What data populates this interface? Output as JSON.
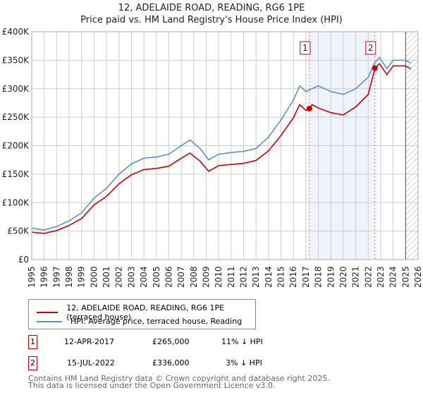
{
  "chart_data": {
    "type": "line",
    "title": "12, ADELAIDE ROAD, READING, RG6 1PE",
    "subtitle": "Price paid vs. HM Land Registry's House Price Index (HPI)",
    "xlim": [
      1995,
      2026
    ],
    "ylim": [
      0,
      400000
    ],
    "x_ticks": [
      "1995",
      "1996",
      "1997",
      "1998",
      "1999",
      "2000",
      "2001",
      "2002",
      "2003",
      "2004",
      "2005",
      "2006",
      "2007",
      "2008",
      "2009",
      "2010",
      "2011",
      "2012",
      "2013",
      "2014",
      "2015",
      "2016",
      "2017",
      "2018",
      "2019",
      "2020",
      "2021",
      "2022",
      "2023",
      "2024",
      "2025",
      "2026"
    ],
    "y_ticks": [
      {
        "v": 0,
        "l": "£0"
      },
      {
        "v": 50000,
        "l": "£50K"
      },
      {
        "v": 100000,
        "l": "£100K"
      },
      {
        "v": 150000,
        "l": "£150K"
      },
      {
        "v": 200000,
        "l": "£200K"
      },
      {
        "v": 250000,
        "l": "£250K"
      },
      {
        "v": 300000,
        "l": "£300K"
      },
      {
        "v": 350000,
        "l": "£350K"
      },
      {
        "v": 400000,
        "l": "£400K"
      }
    ],
    "grid": true,
    "series": [
      {
        "name": "HPI: Average price, terraced house, Reading",
        "color": "#5b8fd0",
        "x": [
          1995,
          1996,
          1997,
          1998,
          1999,
          2000,
          2001,
          2002,
          2003,
          2004,
          2005,
          2006,
          2007,
          2007.7,
          2008.5,
          2009.2,
          2010,
          2011,
          2012,
          2013,
          2014,
          2015,
          2016,
          2016.5,
          2017,
          2017.5,
          2018,
          2019,
          2020,
          2021,
          2022,
          2022.5,
          2022.9,
          2023.5,
          2024,
          2025,
          2025.4
        ],
        "y": [
          55000,
          52000,
          58000,
          68000,
          82000,
          108000,
          125000,
          150000,
          168000,
          178000,
          180000,
          185000,
          200000,
          210000,
          195000,
          175000,
          185000,
          188000,
          190000,
          195000,
          215000,
          245000,
          280000,
          305000,
          295000,
          300000,
          305000,
          295000,
          290000,
          300000,
          320000,
          345000,
          355000,
          335000,
          350000,
          350000,
          345000
        ]
      },
      {
        "name": "12, ADELAIDE ROAD, READING, RG6 1PE (terraced house)",
        "color": "#cc0000",
        "x": [
          1995,
          1996,
          1997,
          1998,
          1999,
          2000,
          2001,
          2002,
          2003,
          2004,
          2005,
          2006,
          2007,
          2007.7,
          2008.5,
          2009.2,
          2010,
          2011,
          2012,
          2013,
          2014,
          2015,
          2016,
          2016.5,
          2017,
          2017.28,
          2017.5,
          2018,
          2019,
          2020,
          2021,
          2022,
          2022.54,
          2022.9,
          2023.5,
          2024,
          2025,
          2025.4
        ],
        "y": [
          48000,
          46000,
          51000,
          60000,
          72000,
          96000,
          111000,
          133000,
          149000,
          158000,
          160000,
          164000,
          178000,
          187000,
          173000,
          155000,
          165000,
          167000,
          169000,
          174000,
          191000,
          218000,
          249000,
          272000,
          262000,
          265000,
          272000,
          266000,
          258000,
          254000,
          268000,
          290000,
          336000,
          344000,
          325000,
          340000,
          340000,
          335000
        ]
      }
    ],
    "sales": [
      {
        "label": "1",
        "x": 2017.28,
        "y": 265000
      },
      {
        "label": "2",
        "x": 2022.54,
        "y": 336000
      }
    ]
  },
  "legend": {
    "items": [
      "12, ADELAIDE ROAD, READING, RG6 1PE (terraced house)",
      "HPI: Average price, terraced house, Reading"
    ]
  },
  "table": [
    {
      "num": "1",
      "date": "12-APR-2017",
      "price": "£265,000",
      "hpi": "11% ↓ HPI"
    },
    {
      "num": "2",
      "date": "15-JUL-2022",
      "price": "£336,000",
      "hpi": "3% ↓ HPI"
    }
  ],
  "footer": {
    "line1": "Contains HM Land Registry data © Crown copyright and database right 2025.",
    "line2": "This data is licensed under the Open Government Licence v3.0."
  }
}
